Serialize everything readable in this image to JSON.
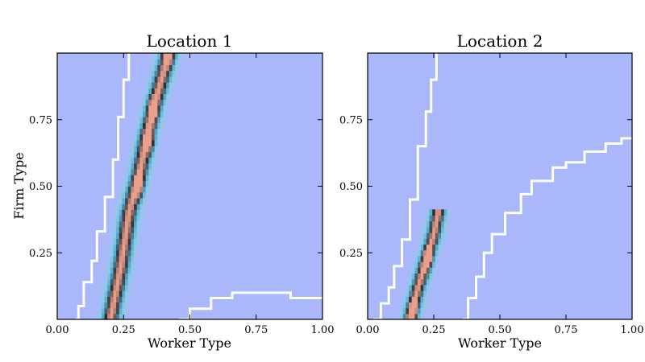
{
  "chart_data": [
    {
      "type": "heatmap",
      "title": "Location 1",
      "xlabel": "Worker Type",
      "ylabel": "Firm Type",
      "xlim": [
        0,
        1
      ],
      "ylim": [
        0,
        1
      ],
      "xticks": [
        "0.00",
        "0.25",
        "0.50",
        "0.75",
        "1.00"
      ],
      "yticks": [
        "0.25",
        "0.50",
        "0.75"
      ],
      "colormap": [
        "#aab8fb",
        "#8ecbe8",
        "#50a6c6",
        "#2f2f35",
        "#e9a08c"
      ],
      "background_color": "#aab8fb",
      "ridge": {
        "points": [
          [
            0.2,
            0.0
          ],
          [
            0.24,
            0.2
          ],
          [
            0.27,
            0.4
          ],
          [
            0.31,
            0.55
          ],
          [
            0.34,
            0.7
          ],
          [
            0.37,
            0.82
          ],
          [
            0.42,
            1.0
          ]
        ],
        "width": 0.035,
        "peaks": [
          [
            0.31,
            0.5
          ],
          [
            0.35,
            0.67
          ],
          [
            0.36,
            0.79
          ],
          [
            0.42,
            1.0
          ]
        ]
      },
      "contours": [
        {
          "name": "lower-bound",
          "points": [
            [
              0.07,
              0.0
            ],
            [
              0.08,
              0.05
            ],
            [
              0.1,
              0.14
            ],
            [
              0.13,
              0.22
            ],
            [
              0.15,
              0.33
            ],
            [
              0.18,
              0.46
            ],
            [
              0.21,
              0.6
            ],
            [
              0.23,
              0.76
            ],
            [
              0.25,
              0.9
            ],
            [
              0.27,
              1.0
            ]
          ]
        },
        {
          "name": "upper-bound",
          "points": [
            [
              0.46,
              0.0
            ],
            [
              0.5,
              0.04
            ],
            [
              0.58,
              0.08
            ],
            [
              0.66,
              0.1
            ],
            [
              0.85,
              0.1
            ],
            [
              0.88,
              0.08
            ],
            [
              1.0,
              0.08
            ]
          ]
        }
      ]
    },
    {
      "type": "heatmap",
      "title": "Location 2",
      "xlabel": "Worker Type",
      "ylabel": "",
      "xlim": [
        0,
        1
      ],
      "ylim": [
        0,
        1
      ],
      "xticks": [
        "0.00",
        "0.25",
        "0.50",
        "0.75",
        "1.00"
      ],
      "yticks": [
        "0.25",
        "0.50",
        "0.75"
      ],
      "colormap": [
        "#aab8fb",
        "#8ecbe8",
        "#50a6c6",
        "#2f2f35",
        "#e9a08c"
      ],
      "background_color": "#aab8fb",
      "ridge": {
        "points": [
          [
            0.16,
            0.0
          ],
          [
            0.19,
            0.12
          ],
          [
            0.22,
            0.22
          ],
          [
            0.25,
            0.32
          ],
          [
            0.27,
            0.42
          ]
        ],
        "width": 0.03,
        "peaks": [
          [
            0.17,
            0.02
          ],
          [
            0.23,
            0.22
          ]
        ]
      },
      "contours": [
        {
          "name": "lower-bound",
          "points": [
            [
              0.02,
              0.0
            ],
            [
              0.05,
              0.06
            ],
            [
              0.08,
              0.12
            ],
            [
              0.1,
              0.2
            ],
            [
              0.13,
              0.3
            ],
            [
              0.16,
              0.45
            ],
            [
              0.19,
              0.65
            ],
            [
              0.22,
              0.78
            ],
            [
              0.24,
              0.9
            ],
            [
              0.26,
              1.0
            ]
          ]
        },
        {
          "name": "upper-bound",
          "points": [
            [
              0.36,
              0.0
            ],
            [
              0.38,
              0.08
            ],
            [
              0.41,
              0.16
            ],
            [
              0.44,
              0.25
            ],
            [
              0.47,
              0.32
            ],
            [
              0.52,
              0.4
            ],
            [
              0.58,
              0.47
            ],
            [
              0.62,
              0.52
            ],
            [
              0.7,
              0.57
            ],
            [
              0.75,
              0.59
            ],
            [
              0.82,
              0.63
            ],
            [
              0.9,
              0.66
            ],
            [
              0.96,
              0.68
            ],
            [
              1.0,
              0.68
            ]
          ]
        }
      ]
    }
  ]
}
